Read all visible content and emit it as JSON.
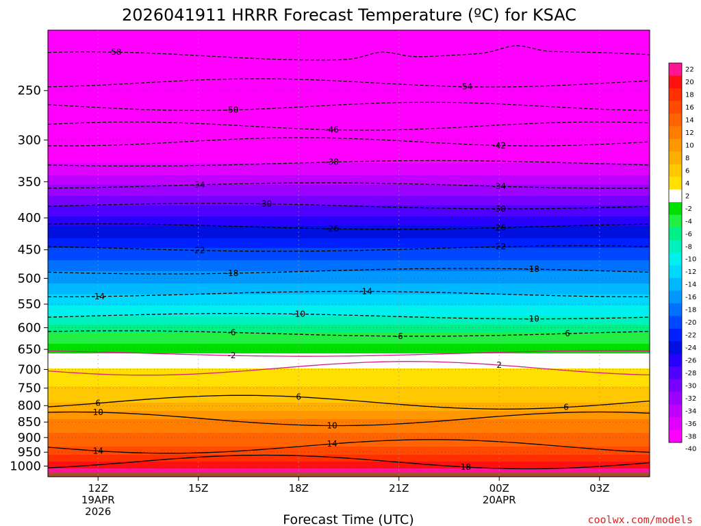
{
  "chart_data": {
    "type": "heatmap",
    "title": "2026041911 HRRR Forecast Temperature (ºC) for KSAC",
    "xlabel": "Forecast Time (UTC)",
    "ylabel": "",
    "y_scale": "log-pressure",
    "y_inverted": true,
    "y_range": [
      200,
      1040
    ],
    "y_ticks": [
      250,
      300,
      350,
      400,
      450,
      500,
      550,
      600,
      650,
      700,
      750,
      800,
      850,
      900,
      950,
      1000
    ],
    "x_range": [
      -1.5,
      16.5
    ],
    "x_ticks": [
      {
        "hour": 0,
        "lines": [
          "12Z",
          "19APR",
          "2026"
        ]
      },
      {
        "hour": 3,
        "lines": [
          "15Z"
        ]
      },
      {
        "hour": 6,
        "lines": [
          "18Z"
        ]
      },
      {
        "hour": 9,
        "lines": [
          "21Z"
        ]
      },
      {
        "hour": 12,
        "lines": [
          "00Z",
          "20APR"
        ]
      },
      {
        "hour": 15,
        "lines": [
          "03Z"
        ]
      }
    ],
    "grid": "dotted",
    "colorbar_labels": [
      "22",
      "20",
      "18",
      "16",
      "14",
      "12",
      "10",
      "8",
      "6",
      "4",
      "2",
      "-2",
      "-4",
      "-6",
      "-8",
      "-10",
      "-12",
      "-14",
      "-16",
      "-18",
      "-20",
      "-22",
      "-24",
      "-26",
      "-28",
      "-30",
      "-32",
      "-34",
      "-36",
      "-38",
      "-40"
    ],
    "colorbar_colors": [
      "#ff1493",
      "#ff1010",
      "#ff3000",
      "#ff4a00",
      "#ff6400",
      "#ff7e00",
      "#ff9700",
      "#ffaf00",
      "#ffc800",
      "#ffe000",
      "#ffffff",
      "#00e000",
      "#22ee44",
      "#00f088",
      "#00f0c0",
      "#00f0f0",
      "#00d8ff",
      "#00b8ff",
      "#0098ff",
      "#0070ff",
      "#0048ff",
      "#0020ff",
      "#0010e0",
      "#2800ff",
      "#5000ff",
      "#7800ff",
      "#9c00ff",
      "#c000ff",
      "#e000ff",
      "#ff00ff"
    ],
    "surface_pressure": 1025,
    "isotherms": [
      {
        "value": -58,
        "p": 220,
        "label_hours": [
          0.5
        ]
      },
      {
        "value": -54,
        "p": 243,
        "label_hours": [
          11
        ]
      },
      {
        "value": -50,
        "p": 265,
        "label_hours": [
          4
        ]
      },
      {
        "value": -46,
        "p": 285,
        "label_hours": [
          7
        ]
      },
      {
        "value": -42,
        "p": 302,
        "label_hours": [
          12
        ]
      },
      {
        "value": -38,
        "p": 327,
        "label_hours": [
          7
        ]
      },
      {
        "value": -34,
        "p": 355,
        "label_hours": [
          3,
          12
        ]
      },
      {
        "value": -30,
        "p": 383,
        "label_hours": [
          5,
          12
        ]
      },
      {
        "value": -26,
        "p": 413,
        "label_hours": [
          7,
          12
        ]
      },
      {
        "value": -22,
        "p": 448,
        "label_hours": [
          3,
          12
        ]
      },
      {
        "value": -18,
        "p": 487,
        "label_hours": [
          4,
          13
        ]
      },
      {
        "value": -14,
        "p": 530,
        "label_hours": [
          0,
          8
        ]
      },
      {
        "value": -10,
        "p": 575,
        "label_hours": [
          6,
          13
        ]
      },
      {
        "value": -6,
        "p": 613,
        "label_hours": [
          4,
          9,
          14
        ]
      },
      {
        "value": -2,
        "p": 660,
        "label_hours": [
          4
        ]
      },
      {
        "value": 2,
        "p": 697,
        "label_hours": [
          12
        ]
      },
      {
        "value": 6,
        "p": 790,
        "label_hours": [
          0,
          6,
          14
        ]
      },
      {
        "value": 10,
        "p": 840,
        "label_hours": [
          0,
          7
        ]
      },
      {
        "value": 14,
        "p": 930,
        "label_hours": [
          0,
          7
        ]
      },
      {
        "value": 18,
        "p": 985,
        "label_hours": [
          11
        ]
      }
    ]
  },
  "credit": "coolwx.com/models"
}
